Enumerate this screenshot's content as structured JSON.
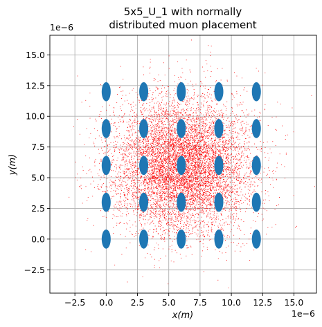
{
  "chart_data": {
    "type": "scatter",
    "title_line1": "5x5_U_1 with normally",
    "title_line2": "distributed muon placement",
    "xlabel": "x(m)",
    "ylabel": "y(m)",
    "x_offset_label": "1e−6",
    "y_offset_label": "1e−6",
    "xlim": [
      -4.5,
      16.8
    ],
    "ylim": [
      -4.4,
      16.6
    ],
    "x_ticks": [
      -2.5,
      0.0,
      2.5,
      5.0,
      7.5,
      10.0,
      12.5,
      15.0
    ],
    "x_tick_labels": [
      "−2.5",
      "0.0",
      "2.5",
      "5.0",
      "7.5",
      "10.0",
      "12.5",
      "15.0"
    ],
    "y_ticks": [
      -2.5,
      0.0,
      2.5,
      5.0,
      7.5,
      10.0,
      12.5,
      15.0
    ],
    "y_tick_labels": [
      "−2.5",
      "0.0",
      "2.5",
      "5.0",
      "7.5",
      "10.0",
      "12.5",
      "15.0"
    ],
    "grid": true,
    "atoms": {
      "color": "#1f77b4",
      "x": [
        0,
        3,
        6,
        9,
        12
      ],
      "y": [
        0,
        3,
        6,
        9,
        12
      ],
      "rx": 0.36,
      "ry": 0.78
    },
    "muons": {
      "color": "#ff0000",
      "count": 9000,
      "mean": [
        6.0,
        6.0
      ],
      "std": [
        2.7,
        2.7
      ]
    }
  }
}
